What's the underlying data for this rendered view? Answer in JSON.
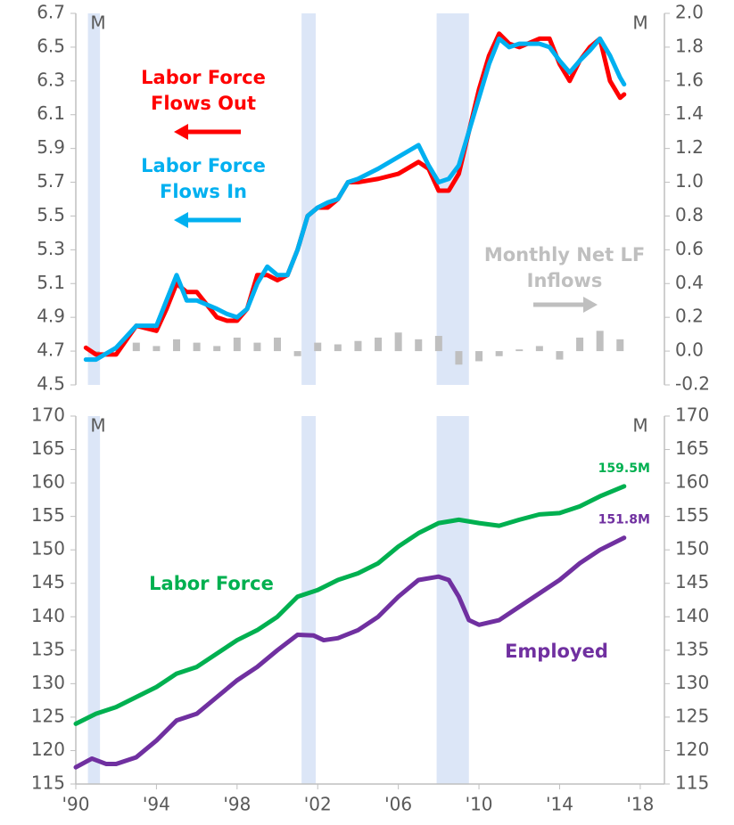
{
  "chart_data": [
    {
      "type": "line",
      "period_label": "M",
      "xlim": [
        1990,
        2019.2
      ],
      "ylim": [
        4.5,
        6.7
      ],
      "yticks": [
        4.5,
        4.7,
        4.9,
        5.1,
        5.3,
        5.5,
        5.7,
        5.9,
        6.1,
        6.3,
        6.5,
        6.7
      ],
      "y2lim": [
        -0.2,
        2.0
      ],
      "y2ticks": [
        -0.2,
        {
          "value": 0,
          "label": "0.0"
        },
        0.2,
        0.4,
        0.6,
        0.8,
        {
          "value": 1,
          "label": "1.0"
        },
        1.2,
        1.4,
        1.6,
        1.8,
        {
          "value": 2,
          "label": "2.0"
        }
      ],
      "recessions": [
        [
          1990.6,
          1991.2
        ],
        [
          2001.2,
          2001.9
        ],
        [
          2007.9,
          2009.5
        ]
      ],
      "annotations": [
        {
          "text": "Labor Force Flows Out",
          "color": "#ff0000"
        },
        {
          "text": "Labor Force Flows In",
          "color": "#00b0f0"
        },
        {
          "text": "Monthly Net LF Inflows",
          "color": "#bfbfbf"
        }
      ],
      "series": [
        {
          "name": "Labor Force Flows Out",
          "color": "#ff0000",
          "type": "line",
          "x": [
            1990.5,
            1991,
            1992,
            1993,
            1994,
            1994.5,
            1995,
            1995.5,
            1996,
            1997,
            1997.5,
            1998,
            1998.5,
            1999,
            1999.5,
            2000,
            2000.5,
            2001,
            2001.5,
            2002,
            2002.5,
            2003,
            2003.5,
            2004,
            2005,
            2006,
            2007,
            2007.5,
            2008,
            2008.5,
            2009,
            2009.5,
            2010,
            2010.5,
            2011,
            2011.5,
            2012,
            2013,
            2013.5,
            2014,
            2014.5,
            2015,
            2015.5,
            2016,
            2016.5,
            2017,
            2017.2
          ],
          "values": [
            4.72,
            4.68,
            4.68,
            4.85,
            4.82,
            4.95,
            5.1,
            5.05,
            5.05,
            4.9,
            4.88,
            4.88,
            4.95,
            5.15,
            5.15,
            5.12,
            5.15,
            5.3,
            5.5,
            5.55,
            5.55,
            5.6,
            5.7,
            5.7,
            5.72,
            5.75,
            5.82,
            5.78,
            5.65,
            5.65,
            5.75,
            6.0,
            6.25,
            6.45,
            6.58,
            6.52,
            6.5,
            6.55,
            6.55,
            6.4,
            6.3,
            6.42,
            6.5,
            6.55,
            6.3,
            6.2,
            6.22
          ]
        },
        {
          "name": "Labor Force Flows In",
          "color": "#00b0f0",
          "type": "line",
          "x": [
            1990.5,
            1991,
            1992,
            1993,
            1994,
            1994.5,
            1995,
            1995.5,
            1996,
            1997,
            1997.5,
            1998,
            1998.5,
            1999,
            1999.5,
            2000,
            2000.5,
            2001,
            2001.5,
            2002,
            2002.5,
            2003,
            2003.5,
            2004,
            2005,
            2006,
            2007,
            2007.5,
            2008,
            2008.5,
            2009,
            2009.5,
            2010,
            2010.5,
            2011,
            2011.5,
            2012,
            2013,
            2013.5,
            2014,
            2014.5,
            2015,
            2015.5,
            2016,
            2016.5,
            2017,
            2017.2
          ],
          "values": [
            4.65,
            4.65,
            4.72,
            4.85,
            4.85,
            5.0,
            5.15,
            5.0,
            5.0,
            4.95,
            4.92,
            4.9,
            4.95,
            5.1,
            5.2,
            5.15,
            5.15,
            5.3,
            5.5,
            5.55,
            5.58,
            5.6,
            5.7,
            5.72,
            5.78,
            5.85,
            5.92,
            5.8,
            5.7,
            5.72,
            5.8,
            6.0,
            6.2,
            6.4,
            6.55,
            6.5,
            6.52,
            6.52,
            6.5,
            6.42,
            6.35,
            6.42,
            6.48,
            6.55,
            6.45,
            6.32,
            6.28
          ]
        },
        {
          "name": "Monthly Net LF Inflows",
          "color": "#bfbfbf",
          "type": "bar",
          "axis": "y2",
          "x": [
            1991,
            1992,
            1993,
            1994,
            1995,
            1996,
            1997,
            1998,
            1999,
            2000,
            2001,
            2002,
            2003,
            2004,
            2005,
            2006,
            2007,
            2008,
            2009,
            2010,
            2011,
            2012,
            2013,
            2014,
            2015,
            2016,
            2017
          ],
          "values": [
            -0.02,
            0.02,
            0.05,
            0.03,
            0.07,
            0.05,
            0.03,
            0.08,
            0.05,
            0.08,
            -0.03,
            0.05,
            0.04,
            0.06,
            0.08,
            0.11,
            0.07,
            0.09,
            -0.08,
            -0.06,
            -0.03,
            0.01,
            0.03,
            -0.05,
            0.08,
            0.12,
            0.07
          ]
        }
      ]
    },
    {
      "type": "line",
      "period_label": "M",
      "xlim": [
        1990,
        2019.2
      ],
      "xticks": [
        {
          "value": 1990,
          "label": "'90"
        },
        {
          "value": 1994,
          "label": "'94"
        },
        {
          "value": 1998,
          "label": "'98"
        },
        {
          "value": 2002,
          "label": "'02"
        },
        {
          "value": 2006,
          "label": "'06"
        },
        {
          "value": 2010,
          "label": "'10"
        },
        {
          "value": 2014,
          "label": "'14"
        },
        {
          "value": 2018,
          "label": "'18"
        }
      ],
      "ylim": [
        115,
        170
      ],
      "yticks": [
        115,
        120,
        125,
        130,
        135,
        140,
        145,
        150,
        155,
        160,
        165,
        170
      ],
      "y2lim": [
        115,
        170
      ],
      "y2ticks": [
        115,
        120,
        125,
        130,
        135,
        140,
        145,
        150,
        155,
        160,
        165,
        170
      ],
      "recessions": [
        [
          1990.6,
          1991.2
        ],
        [
          2001.2,
          2001.9
        ],
        [
          2007.9,
          2009.5
        ]
      ],
      "annotations": [
        {
          "text": "Labor Force",
          "color": "#00b050"
        },
        {
          "text": "Employed",
          "color": "#7030a0"
        }
      ],
      "series": [
        {
          "name": "Labor Force",
          "color": "#00b050",
          "type": "line",
          "x": [
            1990,
            1991,
            1992,
            1993,
            1994,
            1995,
            1996,
            1997,
            1998,
            1999,
            2000,
            2001,
            2002,
            2003,
            2004,
            2005,
            2006,
            2007,
            2008,
            2009,
            2010,
            2011,
            2012,
            2013,
            2014,
            2015,
            2016,
            2017.2
          ],
          "values": [
            124,
            125.5,
            126.5,
            128,
            129.5,
            131.5,
            132.5,
            134.5,
            136.5,
            138,
            140,
            143,
            144,
            145.5,
            146.5,
            148,
            150.5,
            152.5,
            154,
            154.5,
            154,
            153.6,
            154.5,
            155.3,
            155.5,
            156.5,
            158,
            159.5
          ],
          "value_labels": [
            null,
            null,
            null,
            null,
            null,
            null,
            null,
            null,
            null,
            null,
            null,
            null,
            null,
            null,
            null,
            null,
            null,
            null,
            null,
            null,
            null,
            null,
            null,
            null,
            null,
            null,
            null,
            "159.5M"
          ]
        },
        {
          "name": "Employed",
          "color": "#7030a0",
          "type": "line",
          "x": [
            1990,
            1990.8,
            1991.5,
            1992,
            1993,
            1994,
            1995,
            1996,
            1997,
            1998,
            1999,
            2000,
            2001,
            2001.8,
            2002.3,
            2003,
            2004,
            2005,
            2006,
            2007,
            2008,
            2008.5,
            2009,
            2009.5,
            2010,
            2011,
            2012,
            2013,
            2014,
            2015,
            2016,
            2017.2
          ],
          "values": [
            117.5,
            118.8,
            118,
            118,
            119,
            121.5,
            124.5,
            125.5,
            128,
            130.5,
            132.5,
            135,
            137.3,
            137.2,
            136.5,
            136.8,
            138,
            140,
            143,
            145.5,
            146,
            145.5,
            143,
            139.5,
            138.8,
            139.5,
            141.5,
            143.5,
            145.5,
            148,
            150,
            151.8
          ],
          "value_labels": [
            null,
            null,
            null,
            null,
            null,
            null,
            null,
            null,
            null,
            null,
            null,
            null,
            null,
            null,
            null,
            null,
            null,
            null,
            null,
            null,
            null,
            null,
            null,
            null,
            null,
            null,
            null,
            null,
            null,
            null,
            null,
            "151.8M"
          ]
        }
      ]
    }
  ]
}
